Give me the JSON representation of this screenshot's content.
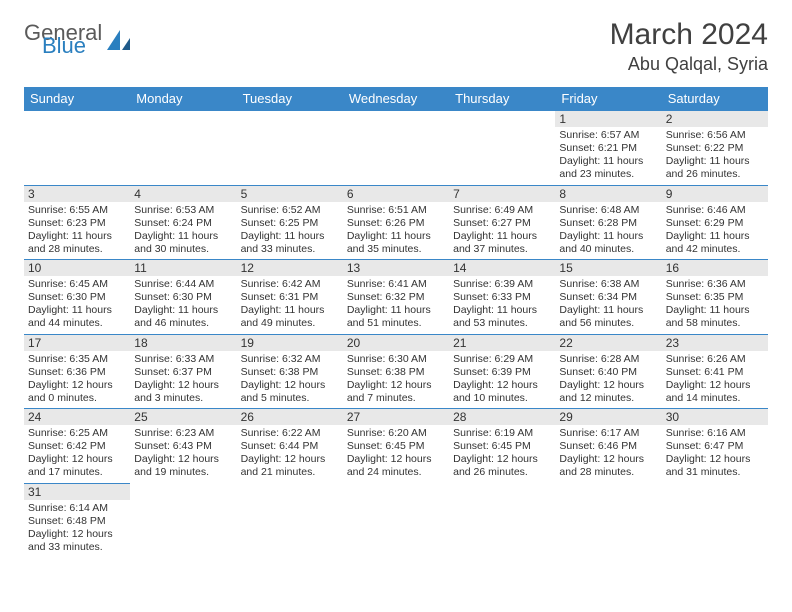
{
  "header": {
    "logo_general": "General",
    "logo_blue": "Blue",
    "month_title": "March 2024",
    "location": "Abu Qalqal, Syria"
  },
  "colors": {
    "header_bg": "#3a87c8",
    "header_fg": "#ffffff",
    "daynum_bg": "#e8e8e8",
    "border": "#3a87c8",
    "text": "#333333",
    "logo_gray": "#5a5a5a",
    "logo_blue": "#2a7fbf"
  },
  "weekdays": [
    "Sunday",
    "Monday",
    "Tuesday",
    "Wednesday",
    "Thursday",
    "Friday",
    "Saturday"
  ],
  "weeks": [
    [
      null,
      null,
      null,
      null,
      null,
      {
        "n": "1",
        "sr": "Sunrise: 6:57 AM",
        "ss": "Sunset: 6:21 PM",
        "dl1": "Daylight: 11 hours",
        "dl2": "and 23 minutes."
      },
      {
        "n": "2",
        "sr": "Sunrise: 6:56 AM",
        "ss": "Sunset: 6:22 PM",
        "dl1": "Daylight: 11 hours",
        "dl2": "and 26 minutes."
      }
    ],
    [
      {
        "n": "3",
        "sr": "Sunrise: 6:55 AM",
        "ss": "Sunset: 6:23 PM",
        "dl1": "Daylight: 11 hours",
        "dl2": "and 28 minutes."
      },
      {
        "n": "4",
        "sr": "Sunrise: 6:53 AM",
        "ss": "Sunset: 6:24 PM",
        "dl1": "Daylight: 11 hours",
        "dl2": "and 30 minutes."
      },
      {
        "n": "5",
        "sr": "Sunrise: 6:52 AM",
        "ss": "Sunset: 6:25 PM",
        "dl1": "Daylight: 11 hours",
        "dl2": "and 33 minutes."
      },
      {
        "n": "6",
        "sr": "Sunrise: 6:51 AM",
        "ss": "Sunset: 6:26 PM",
        "dl1": "Daylight: 11 hours",
        "dl2": "and 35 minutes."
      },
      {
        "n": "7",
        "sr": "Sunrise: 6:49 AM",
        "ss": "Sunset: 6:27 PM",
        "dl1": "Daylight: 11 hours",
        "dl2": "and 37 minutes."
      },
      {
        "n": "8",
        "sr": "Sunrise: 6:48 AM",
        "ss": "Sunset: 6:28 PM",
        "dl1": "Daylight: 11 hours",
        "dl2": "and 40 minutes."
      },
      {
        "n": "9",
        "sr": "Sunrise: 6:46 AM",
        "ss": "Sunset: 6:29 PM",
        "dl1": "Daylight: 11 hours",
        "dl2": "and 42 minutes."
      }
    ],
    [
      {
        "n": "10",
        "sr": "Sunrise: 6:45 AM",
        "ss": "Sunset: 6:30 PM",
        "dl1": "Daylight: 11 hours",
        "dl2": "and 44 minutes."
      },
      {
        "n": "11",
        "sr": "Sunrise: 6:44 AM",
        "ss": "Sunset: 6:30 PM",
        "dl1": "Daylight: 11 hours",
        "dl2": "and 46 minutes."
      },
      {
        "n": "12",
        "sr": "Sunrise: 6:42 AM",
        "ss": "Sunset: 6:31 PM",
        "dl1": "Daylight: 11 hours",
        "dl2": "and 49 minutes."
      },
      {
        "n": "13",
        "sr": "Sunrise: 6:41 AM",
        "ss": "Sunset: 6:32 PM",
        "dl1": "Daylight: 11 hours",
        "dl2": "and 51 minutes."
      },
      {
        "n": "14",
        "sr": "Sunrise: 6:39 AM",
        "ss": "Sunset: 6:33 PM",
        "dl1": "Daylight: 11 hours",
        "dl2": "and 53 minutes."
      },
      {
        "n": "15",
        "sr": "Sunrise: 6:38 AM",
        "ss": "Sunset: 6:34 PM",
        "dl1": "Daylight: 11 hours",
        "dl2": "and 56 minutes."
      },
      {
        "n": "16",
        "sr": "Sunrise: 6:36 AM",
        "ss": "Sunset: 6:35 PM",
        "dl1": "Daylight: 11 hours",
        "dl2": "and 58 minutes."
      }
    ],
    [
      {
        "n": "17",
        "sr": "Sunrise: 6:35 AM",
        "ss": "Sunset: 6:36 PM",
        "dl1": "Daylight: 12 hours",
        "dl2": "and 0 minutes."
      },
      {
        "n": "18",
        "sr": "Sunrise: 6:33 AM",
        "ss": "Sunset: 6:37 PM",
        "dl1": "Daylight: 12 hours",
        "dl2": "and 3 minutes."
      },
      {
        "n": "19",
        "sr": "Sunrise: 6:32 AM",
        "ss": "Sunset: 6:38 PM",
        "dl1": "Daylight: 12 hours",
        "dl2": "and 5 minutes."
      },
      {
        "n": "20",
        "sr": "Sunrise: 6:30 AM",
        "ss": "Sunset: 6:38 PM",
        "dl1": "Daylight: 12 hours",
        "dl2": "and 7 minutes."
      },
      {
        "n": "21",
        "sr": "Sunrise: 6:29 AM",
        "ss": "Sunset: 6:39 PM",
        "dl1": "Daylight: 12 hours",
        "dl2": "and 10 minutes."
      },
      {
        "n": "22",
        "sr": "Sunrise: 6:28 AM",
        "ss": "Sunset: 6:40 PM",
        "dl1": "Daylight: 12 hours",
        "dl2": "and 12 minutes."
      },
      {
        "n": "23",
        "sr": "Sunrise: 6:26 AM",
        "ss": "Sunset: 6:41 PM",
        "dl1": "Daylight: 12 hours",
        "dl2": "and 14 minutes."
      }
    ],
    [
      {
        "n": "24",
        "sr": "Sunrise: 6:25 AM",
        "ss": "Sunset: 6:42 PM",
        "dl1": "Daylight: 12 hours",
        "dl2": "and 17 minutes."
      },
      {
        "n": "25",
        "sr": "Sunrise: 6:23 AM",
        "ss": "Sunset: 6:43 PM",
        "dl1": "Daylight: 12 hours",
        "dl2": "and 19 minutes."
      },
      {
        "n": "26",
        "sr": "Sunrise: 6:22 AM",
        "ss": "Sunset: 6:44 PM",
        "dl1": "Daylight: 12 hours",
        "dl2": "and 21 minutes."
      },
      {
        "n": "27",
        "sr": "Sunrise: 6:20 AM",
        "ss": "Sunset: 6:45 PM",
        "dl1": "Daylight: 12 hours",
        "dl2": "and 24 minutes."
      },
      {
        "n": "28",
        "sr": "Sunrise: 6:19 AM",
        "ss": "Sunset: 6:45 PM",
        "dl1": "Daylight: 12 hours",
        "dl2": "and 26 minutes."
      },
      {
        "n": "29",
        "sr": "Sunrise: 6:17 AM",
        "ss": "Sunset: 6:46 PM",
        "dl1": "Daylight: 12 hours",
        "dl2": "and 28 minutes."
      },
      {
        "n": "30",
        "sr": "Sunrise: 6:16 AM",
        "ss": "Sunset: 6:47 PM",
        "dl1": "Daylight: 12 hours",
        "dl2": "and 31 minutes."
      }
    ],
    [
      {
        "n": "31",
        "sr": "Sunrise: 6:14 AM",
        "ss": "Sunset: 6:48 PM",
        "dl1": "Daylight: 12 hours",
        "dl2": "and 33 minutes."
      },
      null,
      null,
      null,
      null,
      null,
      null
    ]
  ]
}
